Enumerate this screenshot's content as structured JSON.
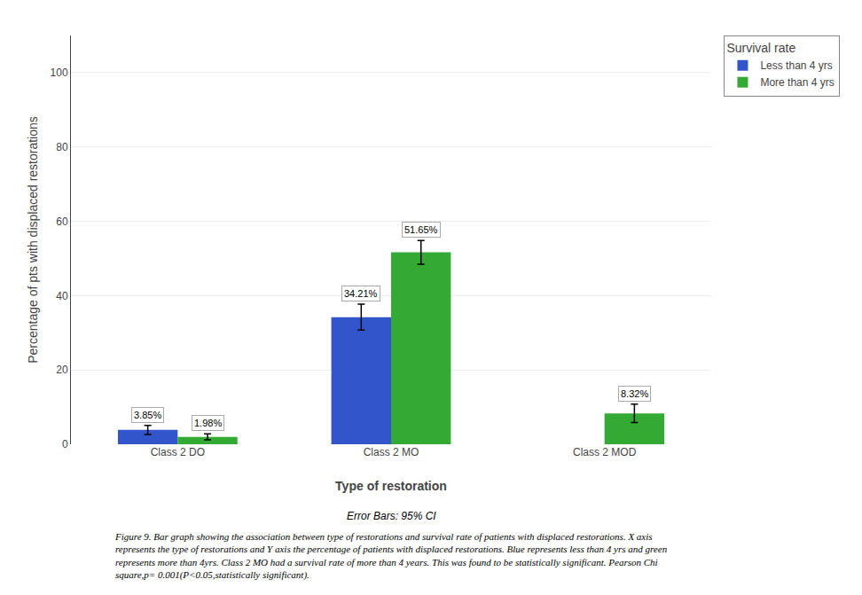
{
  "chart_data": {
    "type": "bar",
    "categories": [
      "Class 2 DO",
      "Class 2 MO",
      "Class 2 MOD"
    ],
    "series": [
      {
        "name": "Less than 4 yrs",
        "color": "#3355cc",
        "values": [
          3.85,
          34.21,
          0
        ],
        "errors": [
          1.2,
          3.5,
          0
        ],
        "value_labels": [
          "3.85%",
          "34.21%",
          null
        ]
      },
      {
        "name": "More than 4 yrs",
        "color": "#33aa33",
        "values": [
          1.98,
          51.65,
          8.32
        ],
        "errors": [
          0.8,
          3.2,
          2.5
        ],
        "value_labels": [
          "1.98%",
          "51.65%",
          "8.32%"
        ]
      }
    ],
    "xlabel": "Type of restoration",
    "ylabel": "Percentage of pts with displaced restorations",
    "legend_title": "Survival rate",
    "legend": "upper right",
    "annotations": [
      "Error Bars: 95% CI",
      "Figure 9. Bar graph showing the association between type of restorations and survival rate of patients with displaced restorations. X axis\nrepresents the type of restorations and Y axis the percentage of patients with displaced restorations. Blue represents less than 4 yrs and green\nrepresents more than 4yrs. Class 2 MO had a survival rate of more than 4 years. This was found to be statistically significant. Pearson Chi\nsquare,p= 0.001(P<0.05,statistically significant)."
    ],
    "ylim": [
      0,
      110
    ],
    "yticks": [
      0,
      20,
      40,
      60,
      80,
      100
    ],
    "grid": true,
    "data_labels": true
  }
}
